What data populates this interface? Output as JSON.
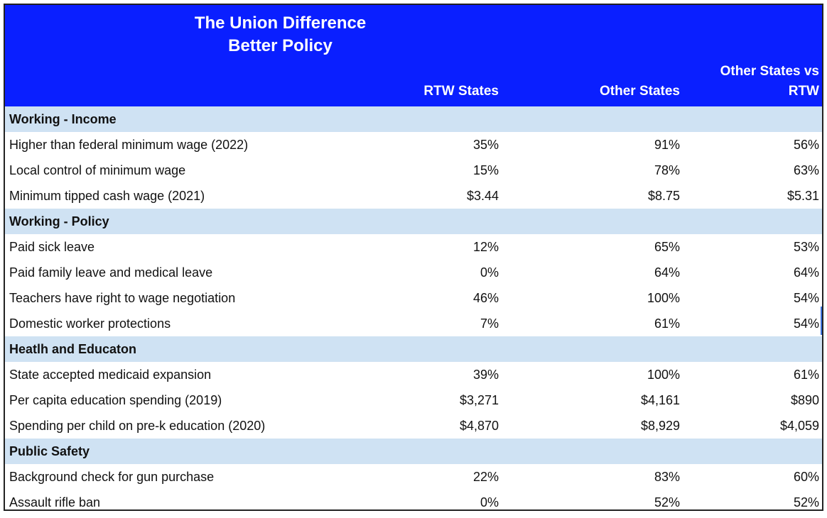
{
  "chart_data": {
    "type": "table",
    "title": "The Union Difference",
    "subtitle": "Better Policy",
    "columns": [
      "RTW States",
      "Other States",
      "Other States vs RTW"
    ],
    "sections": [
      {
        "name": "Working - Income",
        "rows": [
          {
            "label": "Higher than federal minimum wage (2022)",
            "values": [
              "35%",
              "91%",
              "56%"
            ]
          },
          {
            "label": "Local control of minimum wage",
            "values": [
              "15%",
              "78%",
              "63%"
            ]
          },
          {
            "label": "Minimum tipped cash wage (2021)",
            "values": [
              "$3.44",
              "$8.75",
              "$5.31"
            ]
          }
        ]
      },
      {
        "name": "Working - Policy",
        "rows": [
          {
            "label": "Paid sick leave",
            "values": [
              "12%",
              "65%",
              "53%"
            ]
          },
          {
            "label": "Paid family leave and medical leave",
            "values": [
              "0%",
              "64%",
              "64%"
            ]
          },
          {
            "label": "Teachers have right to wage negotiation",
            "values": [
              "46%",
              "100%",
              "54%"
            ]
          },
          {
            "label": "Domestic worker protections",
            "values": [
              "7%",
              "61%",
              "54%"
            ]
          }
        ]
      },
      {
        "name": "Heatlh and Educaton",
        "rows": [
          {
            "label": "State accepted medicaid expansion",
            "values": [
              "39%",
              "100%",
              "61%"
            ]
          },
          {
            "label": "Per capita education spending (2019)",
            "values": [
              "$3,271",
              "$4,161",
              "$890"
            ]
          },
          {
            "label": "Spending per child on pre-k education (2020)",
            "values": [
              "$4,870",
              "$8,929",
              "$4,059"
            ]
          }
        ]
      },
      {
        "name": "Public Safety",
        "rows": [
          {
            "label": "Background check for gun purchase",
            "values": [
              "22%",
              "83%",
              "60%"
            ]
          },
          {
            "label": "Assault rifle ban",
            "values": [
              "0%",
              "52%",
              "52%"
            ]
          }
        ]
      }
    ]
  },
  "header": {
    "title_line1": "The Union Difference",
    "title_line2": "Better Policy",
    "col1": "RTW States",
    "col2": "Other States",
    "col3_line1": "Other States vs",
    "col3_line2": "RTW"
  },
  "colors": {
    "header_bg": "#0a1fff",
    "section_bg": "#cfe2f3",
    "text": "#111111"
  }
}
